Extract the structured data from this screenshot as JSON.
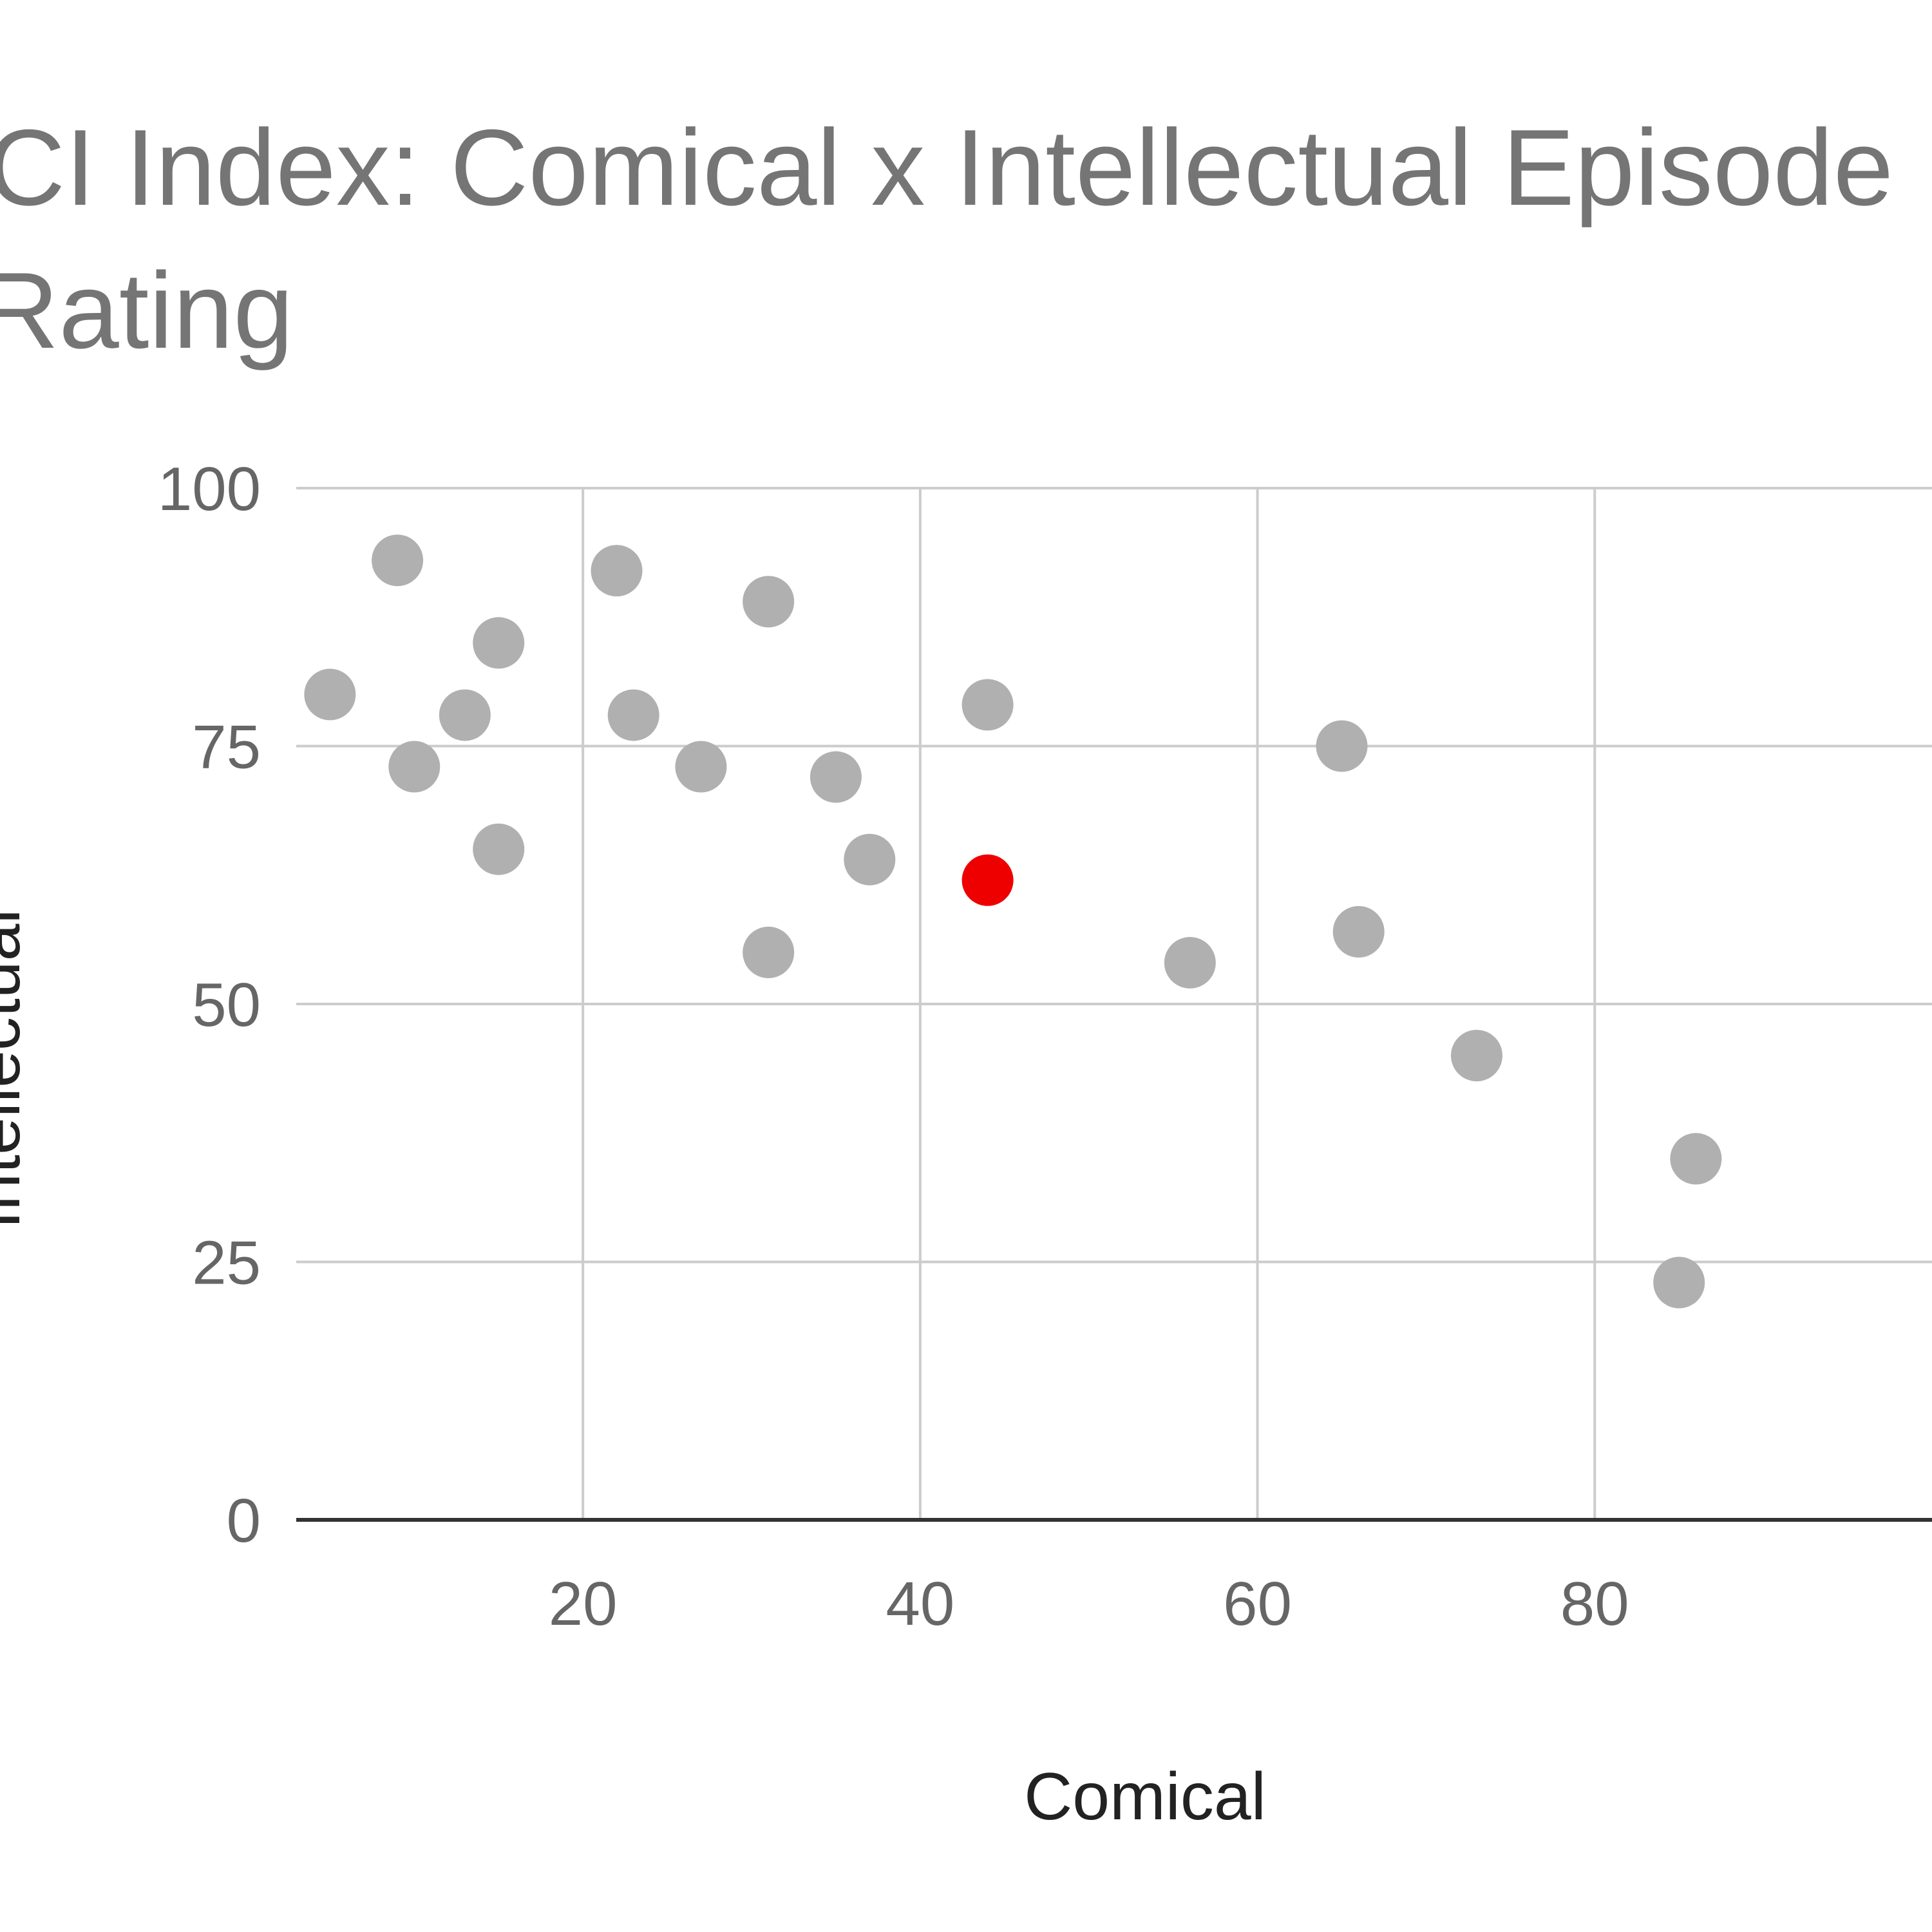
{
  "chart_data": {
    "type": "scatter",
    "title_lines": [
      "CI Index: Comical x Intellectual Episode",
      "Rating"
    ],
    "xlabel": "Comical",
    "ylabel": "Intellectual",
    "xlim": [
      3,
      100
    ],
    "ylim": [
      0,
      100
    ],
    "x_ticks": [
      20,
      40,
      60,
      80
    ],
    "y_ticks": [
      0,
      25,
      50,
      75,
      100
    ],
    "grid": true,
    "legend": "none",
    "series": [
      {
        "color": "#b0b0b0",
        "points": [
          {
            "x": 5,
            "y": 80
          },
          {
            "x": 9,
            "y": 93
          },
          {
            "x": 10,
            "y": 73
          },
          {
            "x": 13,
            "y": 78
          },
          {
            "x": 15,
            "y": 85
          },
          {
            "x": 15,
            "y": 65
          },
          {
            "x": 22,
            "y": 92
          },
          {
            "x": 23,
            "y": 78
          },
          {
            "x": 27,
            "y": 73
          },
          {
            "x": 31,
            "y": 89
          },
          {
            "x": 31,
            "y": 55
          },
          {
            "x": 35,
            "y": 72
          },
          {
            "x": 37,
            "y": 64
          },
          {
            "x": 44,
            "y": 79
          },
          {
            "x": 56,
            "y": 54
          },
          {
            "x": 65,
            "y": 75
          },
          {
            "x": 66,
            "y": 57
          },
          {
            "x": 73,
            "y": 45
          },
          {
            "x": 85,
            "y": 23
          },
          {
            "x": 86,
            "y": 35
          }
        ]
      },
      {
        "color": "#ee0000",
        "points": [
          {
            "x": 44,
            "y": 62
          }
        ]
      }
    ]
  }
}
